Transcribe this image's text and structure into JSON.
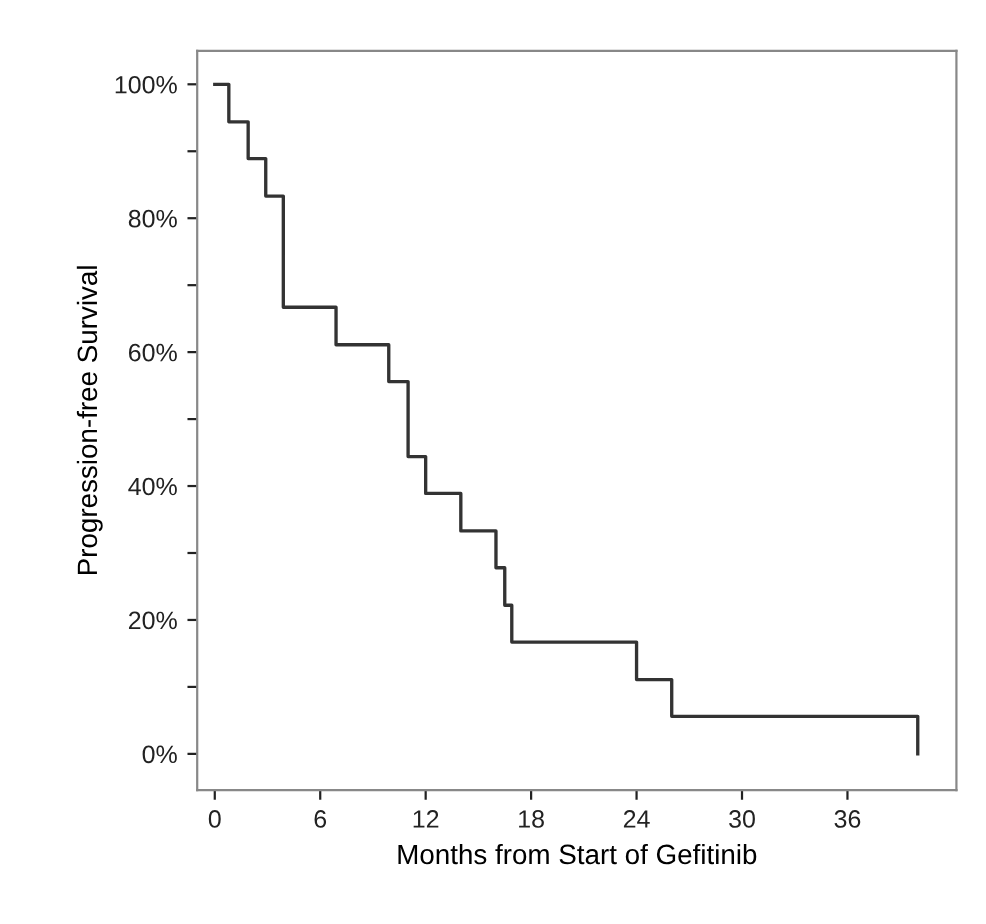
{
  "chart_data": {
    "type": "step",
    "xlabel": "Months from Start of Gefitinib",
    "ylabel": "Progression-free Survival",
    "x": [
      0,
      0.8,
      1.9,
      2.9,
      3.9,
      6.9,
      9.9,
      11,
      12,
      14,
      16,
      16.5,
      16.9,
      24,
      26,
      40
    ],
    "series": [
      {
        "color": "#333333",
        "values": [
          100,
          94.4,
          88.9,
          83.3,
          66.7,
          61.1,
          55.6,
          44.4,
          38.9,
          33.3,
          27.8,
          22.2,
          16.7,
          11.1,
          5.6,
          0
        ]
      }
    ],
    "xlim": [
      -1,
      42.2
    ],
    "ylim": [
      -5.4,
      105
    ],
    "xticks": [
      0,
      6,
      12,
      18,
      24,
      30,
      36
    ],
    "yticks": [
      {
        "value": 0,
        "label": "0%"
      },
      {
        "value": 10,
        "label": null
      },
      {
        "value": 20,
        "label": "20%"
      },
      {
        "value": 30,
        "label": null
      },
      {
        "value": 40,
        "label": "40%"
      },
      {
        "value": 50,
        "label": null
      },
      {
        "value": 60,
        "label": "60%"
      },
      {
        "value": 70,
        "label": null
      },
      {
        "value": 80,
        "label": "80%"
      },
      {
        "value": 90,
        "label": null
      },
      {
        "value": 100,
        "label": "100%"
      }
    ],
    "grid": false,
    "legend": false,
    "line_style": "solid",
    "marker": "none"
  }
}
